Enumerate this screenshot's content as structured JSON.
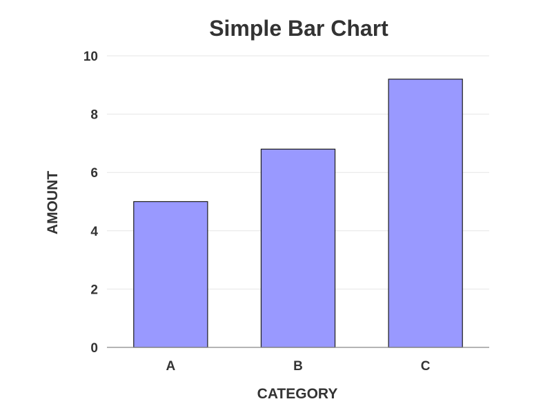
{
  "chart_data": {
    "type": "bar",
    "title": "Simple Bar Chart",
    "xlabel": "CATEGORY",
    "ylabel": "AMOUNT",
    "categories": [
      "A",
      "B",
      "C"
    ],
    "values": [
      5,
      6.8,
      9.2
    ],
    "ylim": [
      0,
      10
    ],
    "yticks": [
      "0",
      "2",
      "4",
      "6",
      "8",
      "10"
    ],
    "grid": true,
    "legend": "none",
    "colors": {
      "bar_fill": "#9999ff",
      "bar_stroke": "#1a1a1a",
      "grid": "#e6e6e6",
      "axis": "#888888",
      "text": "#333333",
      "background": "#ffffff"
    }
  }
}
